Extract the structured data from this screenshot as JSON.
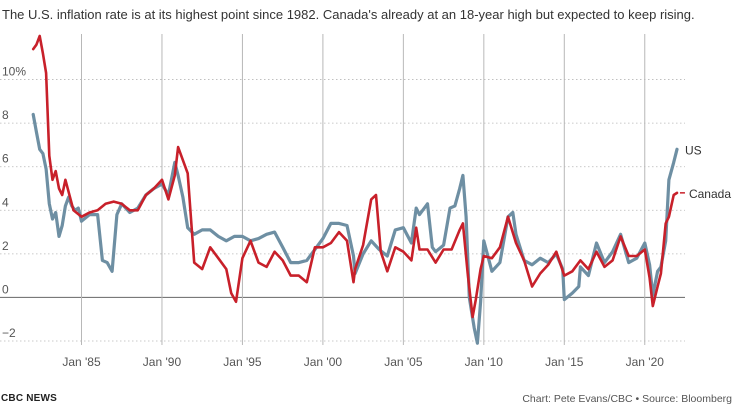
{
  "subtitle": "The U.S. inflation rate is at its highest point since 1982. Canada's already at an 18-year high but expected to keep rising.",
  "footer": {
    "source_left": "CBC NEWS",
    "credit": "Chart: Pete Evans/CBC • Source: Bloomberg"
  },
  "colors": {
    "us": "#6e8fa3",
    "canada": "#c8202a",
    "grid": "#b8b8b8",
    "zero_line": "#666666"
  },
  "chart_data": {
    "type": "line",
    "title": "",
    "xlabel": "",
    "ylabel": "",
    "xlim": [
      1981.8,
      2022.5
    ],
    "ylim": [
      -2,
      12
    ],
    "y_ticks": [
      {
        "value": -2,
        "label": "−2"
      },
      {
        "value": 0,
        "label": "0"
      },
      {
        "value": 2,
        "label": "2"
      },
      {
        "value": 4,
        "label": "4"
      },
      {
        "value": 6,
        "label": "6"
      },
      {
        "value": 8,
        "label": "8"
      },
      {
        "value": 10,
        "label": "10%"
      }
    ],
    "x_ticks": [
      {
        "value": 1985,
        "label": "Jan '85"
      },
      {
        "value": 1990,
        "label": "Jan '90"
      },
      {
        "value": 1995,
        "label": "Jan '95"
      },
      {
        "value": 2000,
        "label": "Jan '00"
      },
      {
        "value": 2005,
        "label": "Jan '05"
      },
      {
        "value": 2010,
        "label": "Jan '10"
      },
      {
        "value": 2015,
        "label": "Jan '15"
      },
      {
        "value": 2020,
        "label": "Jan '20"
      }
    ],
    "series": [
      {
        "name": "US",
        "label": "US",
        "x": [
          1982.0,
          1982.2,
          1982.4,
          1982.6,
          1982.8,
          1983.0,
          1983.2,
          1983.4,
          1983.6,
          1983.8,
          1984.0,
          1984.2,
          1984.4,
          1984.6,
          1984.8,
          1985.0,
          1985.5,
          1986.0,
          1986.3,
          1986.6,
          1986.9,
          1987.2,
          1987.5,
          1988.0,
          1988.5,
          1989.0,
          1989.5,
          1990.0,
          1990.4,
          1990.8,
          1991.0,
          1991.3,
          1991.6,
          1992.0,
          1992.5,
          1993.0,
          1993.5,
          1994.0,
          1994.5,
          1995.0,
          1995.5,
          1996.0,
          1996.5,
          1997.0,
          1997.5,
          1998.0,
          1998.5,
          1999.0,
          1999.5,
          2000.0,
          2000.5,
          2001.0,
          2001.5,
          2001.9,
          2002.0,
          2002.5,
          2003.0,
          2003.5,
          2004.0,
          2004.5,
          2005.0,
          2005.5,
          2005.8,
          2006.0,
          2006.5,
          2006.8,
          2007.0,
          2007.5,
          2007.9,
          2008.2,
          2008.5,
          2008.7,
          2008.9,
          2009.1,
          2009.4,
          2009.6,
          2009.8,
          2010.0,
          2010.5,
          2011.0,
          2011.5,
          2011.8,
          2012.0,
          2012.5,
          2013.0,
          2013.5,
          2014.0,
          2014.5,
          2014.9,
          2015.0,
          2015.5,
          2015.9,
          2016.0,
          2016.5,
          2017.0,
          2017.5,
          2018.0,
          2018.5,
          2019.0,
          2019.5,
          2020.0,
          2020.3,
          2020.5,
          2020.8,
          2021.0,
          2021.3,
          2021.5,
          2021.8,
          2022.0
        ],
        "values": [
          8.4,
          7.6,
          6.8,
          6.6,
          5.9,
          4.3,
          3.6,
          3.9,
          2.8,
          3.3,
          4.2,
          4.6,
          4.2,
          4.0,
          4.1,
          3.5,
          3.8,
          3.8,
          1.7,
          1.6,
          1.2,
          3.8,
          4.3,
          3.9,
          4.1,
          4.7,
          5.0,
          5.2,
          4.7,
          6.2,
          5.6,
          4.6,
          3.2,
          2.9,
          3.1,
          3.1,
          2.8,
          2.6,
          2.8,
          2.8,
          2.6,
          2.7,
          2.9,
          3.0,
          2.3,
          1.6,
          1.6,
          1.7,
          2.2,
          2.7,
          3.4,
          3.4,
          3.3,
          1.9,
          1.1,
          2.0,
          2.6,
          2.2,
          1.9,
          3.1,
          3.2,
          2.5,
          4.1,
          3.8,
          4.3,
          2.3,
          2.1,
          2.4,
          4.1,
          4.2,
          5.0,
          5.6,
          3.7,
          0.0,
          -1.4,
          -2.1,
          -0.2,
          2.6,
          1.2,
          1.6,
          3.7,
          3.9,
          2.9,
          1.7,
          1.5,
          1.8,
          1.6,
          2.0,
          1.3,
          -0.1,
          0.2,
          0.5,
          1.4,
          1.0,
          2.5,
          1.6,
          2.1,
          2.9,
          1.6,
          1.8,
          2.5,
          1.5,
          0.1,
          1.2,
          1.4,
          2.6,
          5.4,
          6.2,
          6.8
        ]
      },
      {
        "name": "Canada",
        "label": "Canada",
        "x": [
          1982.0,
          1982.2,
          1982.4,
          1982.6,
          1982.8,
          1983.0,
          1983.2,
          1983.4,
          1983.6,
          1983.8,
          1984.0,
          1984.5,
          1985.0,
          1985.5,
          1986.0,
          1986.5,
          1987.0,
          1987.5,
          1988.0,
          1988.5,
          1989.0,
          1989.5,
          1990.0,
          1990.4,
          1990.8,
          1991.0,
          1991.3,
          1991.6,
          1992.0,
          1992.5,
          1993.0,
          1993.5,
          1994.0,
          1994.3,
          1994.6,
          1995.0,
          1995.5,
          1996.0,
          1996.5,
          1997.0,
          1997.5,
          1998.0,
          1998.5,
          1999.0,
          1999.5,
          2000.0,
          2000.5,
          2001.0,
          2001.5,
          2001.9,
          2002.0,
          2002.5,
          2003.0,
          2003.3,
          2003.6,
          2004.0,
          2004.5,
          2005.0,
          2005.5,
          2005.8,
          2006.0,
          2006.5,
          2007.0,
          2007.5,
          2008.0,
          2008.5,
          2008.7,
          2009.0,
          2009.3,
          2009.5,
          2009.8,
          2010.0,
          2010.5,
          2011.0,
          2011.5,
          2012.0,
          2012.5,
          2013.0,
          2013.5,
          2014.0,
          2014.5,
          2015.0,
          2015.5,
          2016.0,
          2016.5,
          2017.0,
          2017.5,
          2018.0,
          2018.5,
          2019.0,
          2019.5,
          2020.0,
          2020.3,
          2020.5,
          2020.8,
          2021.0,
          2021.3,
          2021.5,
          2021.8,
          2022.0
        ],
        "values": [
          11.4,
          11.6,
          12.0,
          11.2,
          10.3,
          6.5,
          5.4,
          5.8,
          5.0,
          4.7,
          5.4,
          4.0,
          3.7,
          3.9,
          4.0,
          4.3,
          4.4,
          4.3,
          4.0,
          4.0,
          4.7,
          5.0,
          5.4,
          4.5,
          5.6,
          6.9,
          6.3,
          5.7,
          1.6,
          1.3,
          2.3,
          1.8,
          1.3,
          0.2,
          -0.2,
          1.8,
          2.6,
          1.6,
          1.4,
          2.1,
          1.7,
          1.0,
          1.0,
          0.7,
          2.3,
          2.3,
          2.5,
          3.0,
          2.6,
          0.7,
          1.3,
          2.4,
          4.5,
          4.7,
          2.1,
          1.2,
          2.3,
          2.1,
          1.7,
          3.2,
          2.2,
          2.2,
          1.6,
          2.2,
          2.2,
          3.1,
          3.4,
          1.1,
          -0.9,
          -0.1,
          1.3,
          1.9,
          1.8,
          2.3,
          3.7,
          2.5,
          1.7,
          0.5,
          1.1,
          1.5,
          2.1,
          1.0,
          1.2,
          1.7,
          1.3,
          2.1,
          1.4,
          1.7,
          2.8,
          1.9,
          1.9,
          2.2,
          0.9,
          -0.4,
          0.5,
          1.1,
          3.4,
          3.7,
          4.7,
          4.8
        ]
      }
    ]
  }
}
